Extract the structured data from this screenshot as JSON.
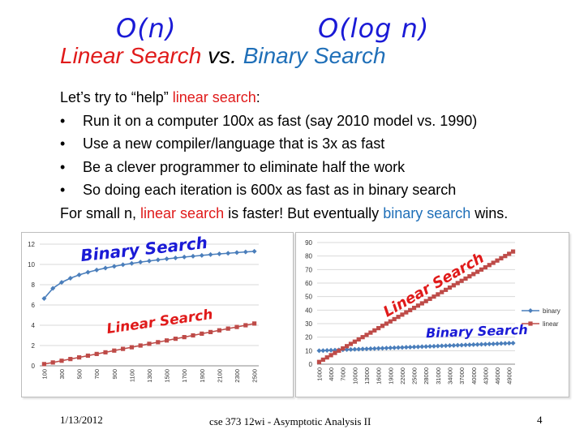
{
  "annotations": {
    "on": "O(n)",
    "ologn": "O(log n)",
    "left_binary": "Binary Search",
    "left_linear": "Linear Search",
    "right_linear": "Linear Search",
    "right_binary": "Binary Search"
  },
  "title": {
    "part1": "Linear Search",
    "part2": " vs. ",
    "part3": "Binary Search"
  },
  "body": {
    "intro_a": "Let’s try to “help” ",
    "intro_b": "linear search",
    "intro_c": ":",
    "bullet_char": "•",
    "bullets": [
      "Run it on a computer 100x as fast (say 2010 model vs. 1990)",
      "Use a new compiler/language that is 3x as fast",
      "Be a clever programmer to eliminate half the work",
      "So doing each iteration is 600x as fast as in binary search"
    ],
    "conclusion_a": "For small n, ",
    "conclusion_b": "linear search",
    "conclusion_c": " is faster!  But eventually ",
    "conclusion_d": "binary search",
    "conclusion_e": " wins."
  },
  "colors": {
    "binary": "#4a7ebb",
    "linear": "#be4b48",
    "red_text": "#e01a1a",
    "blue_text": "#1f6fb8"
  },
  "chart_data": [
    {
      "type": "line",
      "x": [
        100,
        200,
        300,
        400,
        500,
        600,
        700,
        800,
        900,
        1000,
        1100,
        1200,
        1300,
        1400,
        1500,
        1600,
        1700,
        1800,
        1900,
        2000,
        2100,
        2200,
        2300,
        2400,
        2500
      ],
      "xticks": [
        "100",
        "300",
        "500",
        "700",
        "900",
        "1100",
        "1300",
        "1500",
        "1700",
        "1900",
        "2100",
        "2300",
        "2500"
      ],
      "ylim": [
        0,
        12
      ],
      "yticks": [
        0,
        2,
        4,
        6,
        8,
        10,
        12
      ],
      "series": [
        {
          "name": "binary",
          "values": [
            6.64,
            7.64,
            8.23,
            8.64,
            8.97,
            9.23,
            9.45,
            9.64,
            9.81,
            9.97,
            10.1,
            10.23,
            10.34,
            10.45,
            10.55,
            10.64,
            10.73,
            10.81,
            10.89,
            10.97,
            11.04,
            11.1,
            11.17,
            11.23,
            11.29
          ]
        },
        {
          "name": "linear",
          "values": [
            0.17,
            0.33,
            0.5,
            0.67,
            0.83,
            1.0,
            1.17,
            1.33,
            1.5,
            1.67,
            1.83,
            2.0,
            2.17,
            2.33,
            2.5,
            2.67,
            2.83,
            3.0,
            3.17,
            3.33,
            3.5,
            3.67,
            3.83,
            4.0,
            4.17
          ]
        }
      ],
      "legend": "none"
    },
    {
      "type": "line",
      "x_start": 1000,
      "x_step": 1000,
      "x_count": 50,
      "xticks": [
        "1000",
        "4000",
        "7000",
        "10000",
        "13000",
        "16000",
        "19000",
        "22000",
        "25000",
        "28000",
        "31000",
        "34000",
        "37000",
        "40000",
        "43000",
        "46000",
        "49000"
      ],
      "ylim": [
        0,
        90
      ],
      "yticks": [
        0,
        10,
        20,
        30,
        40,
        50,
        60,
        70,
        80,
        90
      ],
      "series": [
        {
          "name": "binary",
          "from": 9.97,
          "to": 15.61
        },
        {
          "name": "linear",
          "from": 1.67,
          "to": 83.33
        }
      ],
      "legend": "right"
    }
  ],
  "footer": {
    "date": "1/13/2012",
    "course": "cse 373 12wi - Asymptotic Analysis II",
    "page": "4"
  }
}
